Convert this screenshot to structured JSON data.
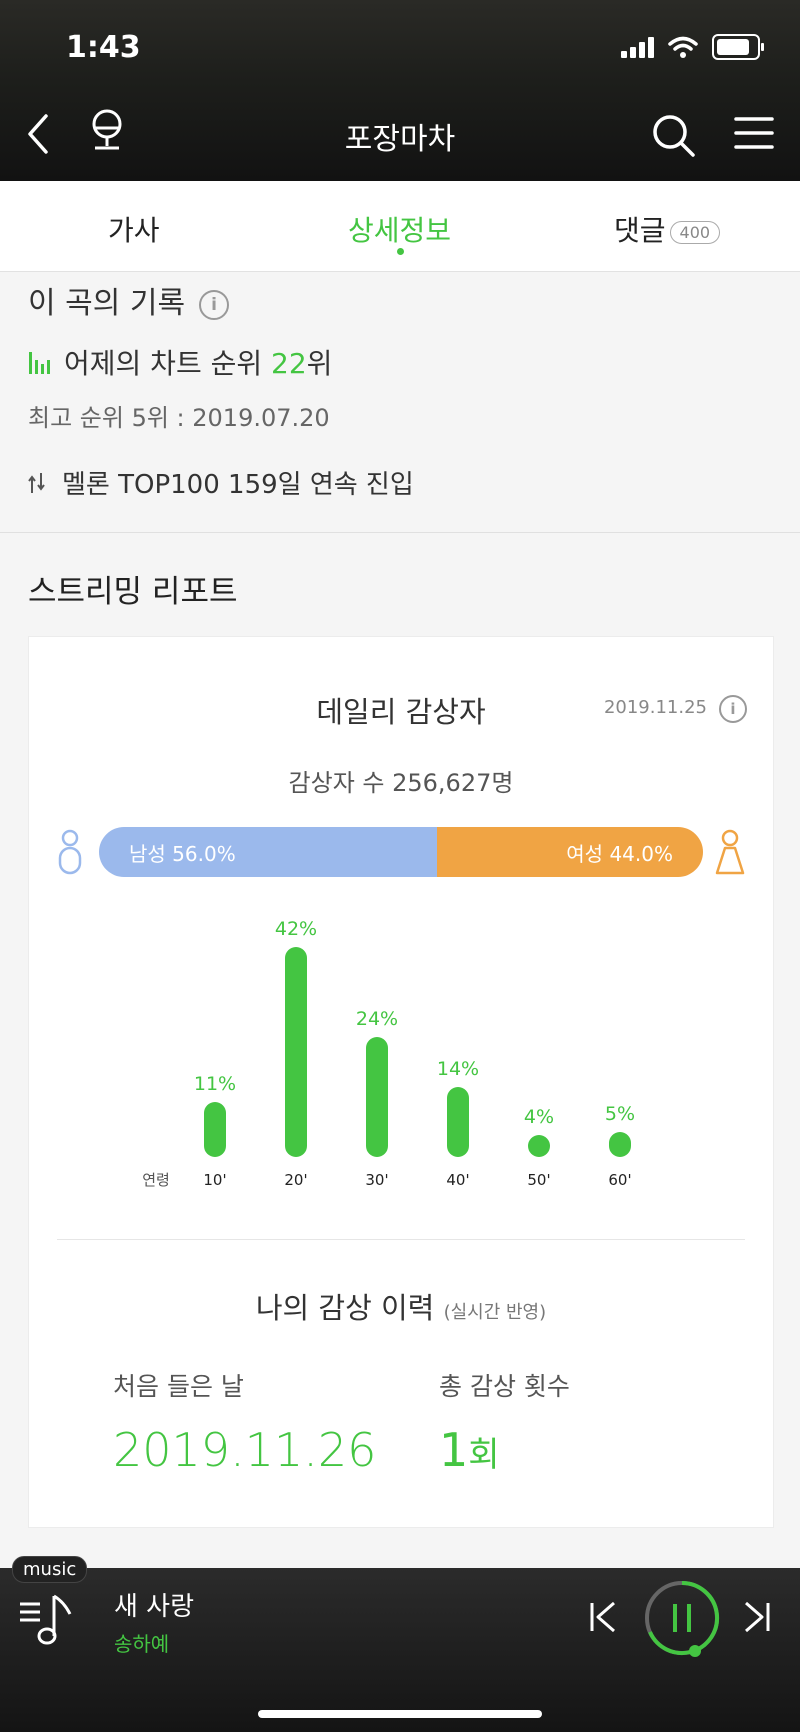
{
  "status": {
    "time": "1:43"
  },
  "nav": {
    "title": "포장마차"
  },
  "tabs": [
    {
      "label": "가사"
    },
    {
      "label": "상세정보"
    },
    {
      "label": "댓글",
      "badge": "400"
    }
  ],
  "record": {
    "title": "이 곡의 기록",
    "rank_prefix": "어제의 차트 순위",
    "rank_value": "22",
    "rank_suffix": "위",
    "best": "최고 순위 5위 : 2019.07.20",
    "top100": "멜론 TOP100 159일 연속 진입"
  },
  "streaming": {
    "title": "스트리밍 리포트",
    "card_title": "데일리 감상자",
    "date": "2019.11.25",
    "listeners": "감상자 수 256,627명",
    "male_label": "남성 56.0%",
    "female_label": "여성 44.0%",
    "male_pct": 56.0,
    "female_pct": 44.0
  },
  "chart_data": {
    "type": "bar",
    "xlabel": "연령",
    "categories": [
      "10'",
      "20'",
      "30'",
      "40'",
      "50'",
      "60'"
    ],
    "values": [
      11,
      42,
      24,
      14,
      4,
      5
    ],
    "value_labels": [
      "11%",
      "42%",
      "24%",
      "14%",
      "4%",
      "5%"
    ],
    "colors": {
      "bar": "#44c542",
      "label": "#44c542"
    }
  },
  "history": {
    "title": "나의 감상 이력",
    "subtitle": "(실시간 반영)",
    "first_label": "처음 들은 날",
    "first_value": "2019.11.26",
    "count_label": "총 감상 횟수",
    "count_value": "1",
    "count_unit": "회"
  },
  "player": {
    "tag": "music",
    "song": "새 사랑",
    "artist": "송하예"
  },
  "colors": {
    "accent": "#44c542",
    "male": "#9bb9ec",
    "female": "#f0a444"
  }
}
